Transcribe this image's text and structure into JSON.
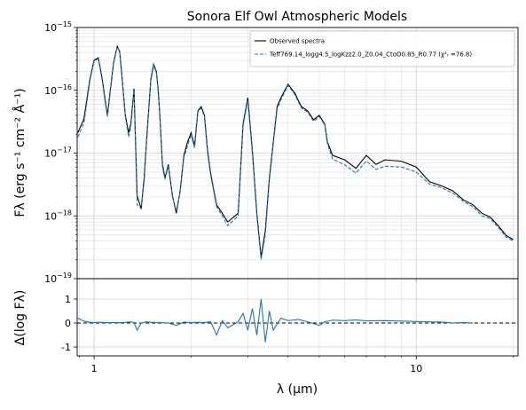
{
  "chart_data": [
    {
      "type": "line",
      "title": "Sonora Elf Owl Atmospheric Models",
      "ylabel": "Fλ (erg s⁻¹ cm⁻² Å⁻¹)",
      "xscale": "log",
      "yscale": "log",
      "xlim": [
        0.886,
        20.7
      ],
      "ylim": [
        1e-19,
        1e-15
      ],
      "xticks": [
        1,
        10
      ],
      "yticks": [
        {
          "value": 1e-15,
          "label": "10",
          "exponent": "−15"
        },
        {
          "value": 1e-16,
          "label": "10",
          "exponent": "−16"
        },
        {
          "value": 1e-17,
          "label": "10",
          "exponent": "−17"
        },
        {
          "value": 1e-18,
          "label": "10",
          "exponent": "−18"
        },
        {
          "value": 1e-19,
          "label": "10",
          "exponent": "−19"
        }
      ],
      "grid": true,
      "minor_grid": true,
      "legend": "upper right",
      "x": [
        0.89,
        0.93,
        0.97,
        1.0,
        1.03,
        1.06,
        1.08,
        1.1,
        1.12,
        1.15,
        1.18,
        1.2,
        1.22,
        1.25,
        1.28,
        1.3,
        1.33,
        1.36,
        1.4,
        1.43,
        1.46,
        1.5,
        1.53,
        1.56,
        1.58,
        1.6,
        1.63,
        1.66,
        1.7,
        1.75,
        1.8,
        1.85,
        1.9,
        1.95,
        2.0,
        2.05,
        2.1,
        2.15,
        2.2,
        2.25,
        2.3,
        2.4,
        2.5,
        2.6,
        2.8,
        2.9,
        3.0,
        3.1,
        3.2,
        3.3,
        3.4,
        3.5,
        3.6,
        3.7,
        3.8,
        4.0,
        4.2,
        4.4,
        4.6,
        4.8,
        5.0,
        5.2,
        5.3,
        5.5,
        6.0,
        6.5,
        7.0,
        7.5,
        8.0,
        9.0,
        10,
        11,
        12,
        13,
        14,
        15,
        16,
        17,
        18,
        19,
        20
      ],
      "series": [
        {
          "name": "Observed spectra",
          "color": "#000000",
          "dash": false,
          "values": [
            2.1e-17,
            3.5e-17,
            1.5e-16,
            3e-16,
            3.3e-16,
            1.5e-16,
            7.6e-17,
            4e-17,
            9e-17,
            2.8e-16,
            5e-16,
            4.2e-16,
            1.7e-16,
            4e-17,
            2.1e-17,
            2.9e-17,
            1.06e-16,
            2.1e-18,
            1.3e-18,
            4e-18,
            2.1e-17,
            1.5e-16,
            2.6e-16,
            2e-16,
            1.06e-16,
            4e-17,
            6.6e-18,
            4e-18,
            6.6e-18,
            2.1e-18,
            1.1e-18,
            2.5e-18,
            9.2e-18,
            1.5e-17,
            2.1e-17,
            1.3e-17,
            4.7e-17,
            5.5e-17,
            4e-17,
            1.1e-17,
            4.8e-18,
            1.5e-18,
            1.1e-18,
            8e-19,
            1.1e-18,
            2.9e-17,
            7.6e-17,
            1.1e-17,
            1.1e-18,
            2.2e-19,
            5.8e-19,
            4e-18,
            1.5e-17,
            5.5e-17,
            7.6e-17,
            1.25e-16,
            9e-17,
            5.5e-17,
            4.7e-17,
            3.4e-17,
            4e-17,
            2.9e-17,
            1.5e-17,
            9.2e-18,
            7.8e-18,
            5.7e-18,
            9.2e-18,
            6.6e-18,
            7.8e-18,
            7.4e-18,
            6e-18,
            3.5e-18,
            3e-18,
            2.5e-18,
            1.8e-18,
            1.5e-18,
            1.1e-18,
            9.5e-19,
            6.9e-19,
            4.9e-19,
            4.2e-19
          ]
        },
        {
          "name": "Teff769.14_logg4.5_logKzz2.0_Z0.04_CtoO0.85_R0.77 (χ²ᵣ =76.8)",
          "color": "#1f77b4",
          "dash": true,
          "values": [
            1.8e-17,
            3e-17,
            1.4e-16,
            2.9e-16,
            3.2e-16,
            1.4e-16,
            7e-17,
            3.8e-17,
            8.5e-17,
            2.7e-16,
            4.9e-16,
            4.1e-16,
            1.6e-16,
            3.8e-17,
            1.8e-17,
            2.6e-17,
            1e-16,
            1.5e-18,
            1.3e-18,
            3.5e-18,
            1.9e-17,
            1.4e-16,
            2.5e-16,
            1.9e-16,
            1e-16,
            3.8e-17,
            6e-18,
            3.8e-18,
            6.2e-18,
            2e-18,
            1.2e-18,
            2.4e-18,
            8.5e-18,
            1.3e-17,
            2e-17,
            1.2e-17,
            4.5e-17,
            5.2e-17,
            3.8e-17,
            1e-17,
            4.5e-18,
            1.4e-18,
            1e-18,
            7e-19,
            1e-18,
            2.7e-17,
            7e-17,
            1e-17,
            1e-18,
            2e-19,
            5e-19,
            3.6e-18,
            1.4e-17,
            5e-17,
            7e-17,
            1.2e-16,
            8.5e-17,
            5.2e-17,
            4.5e-17,
            3.2e-17,
            3.8e-17,
            2.8e-17,
            1.4e-17,
            8e-18,
            6.5e-18,
            4.8e-18,
            7.5e-18,
            5.5e-18,
            6.2e-18,
            6e-18,
            5e-18,
            3.2e-18,
            2.8e-18,
            2.3e-18,
            1.7e-18,
            1.4e-18,
            1e-18,
            9e-19,
            6.5e-19,
            4.6e-19,
            4e-19
          ]
        }
      ]
    },
    {
      "type": "line",
      "xlabel": "λ (μm)",
      "ylabel": "Δ(log Fλ)",
      "xscale": "log",
      "yscale": "linear",
      "xlim": [
        0.886,
        20.7
      ],
      "ylim": [
        -1.37,
        1.85
      ],
      "xticks": [
        1,
        10
      ],
      "yticks": [
        -1,
        0,
        1
      ],
      "grid": true,
      "minor_grid": true,
      "hline": 0,
      "x": [
        0.89,
        0.93,
        0.97,
        1.0,
        1.05,
        1.1,
        1.15,
        1.2,
        1.25,
        1.3,
        1.33,
        1.36,
        1.4,
        1.45,
        1.5,
        1.6,
        1.7,
        1.8,
        1.9,
        2.0,
        2.1,
        2.2,
        2.3,
        2.4,
        2.5,
        2.6,
        2.8,
        2.9,
        3.0,
        3.1,
        3.2,
        3.3,
        3.4,
        3.5,
        3.6,
        3.8,
        4.0,
        4.3,
        4.6,
        5.0,
        5.2,
        5.5,
        6.0,
        6.5,
        7.0,
        8.0,
        9.0,
        10,
        11,
        12,
        13,
        14,
        15
      ],
      "series": [
        {
          "color": "#1f77b4",
          "dash": false,
          "values": [
            0.2,
            0.08,
            0.03,
            0.02,
            0.03,
            0.01,
            0.02,
            0.01,
            0.03,
            0.05,
            0.02,
            -0.3,
            0.0,
            0.05,
            0.03,
            0.02,
            0.0,
            -0.1,
            0.04,
            0.02,
            0.03,
            0.02,
            0.05,
            -0.5,
            0.1,
            -0.2,
            0.05,
            0.4,
            -0.3,
            0.6,
            -0.5,
            1.0,
            -0.8,
            0.5,
            -0.3,
            0.2,
            0.1,
            0.15,
            0.05,
            -0.1,
            0.05,
            0.12,
            0.1,
            0.13,
            0.09,
            0.1,
            0.08,
            0.06,
            0.05,
            0.04,
            0.0,
            0.02,
            0.0
          ]
        }
      ]
    }
  ]
}
